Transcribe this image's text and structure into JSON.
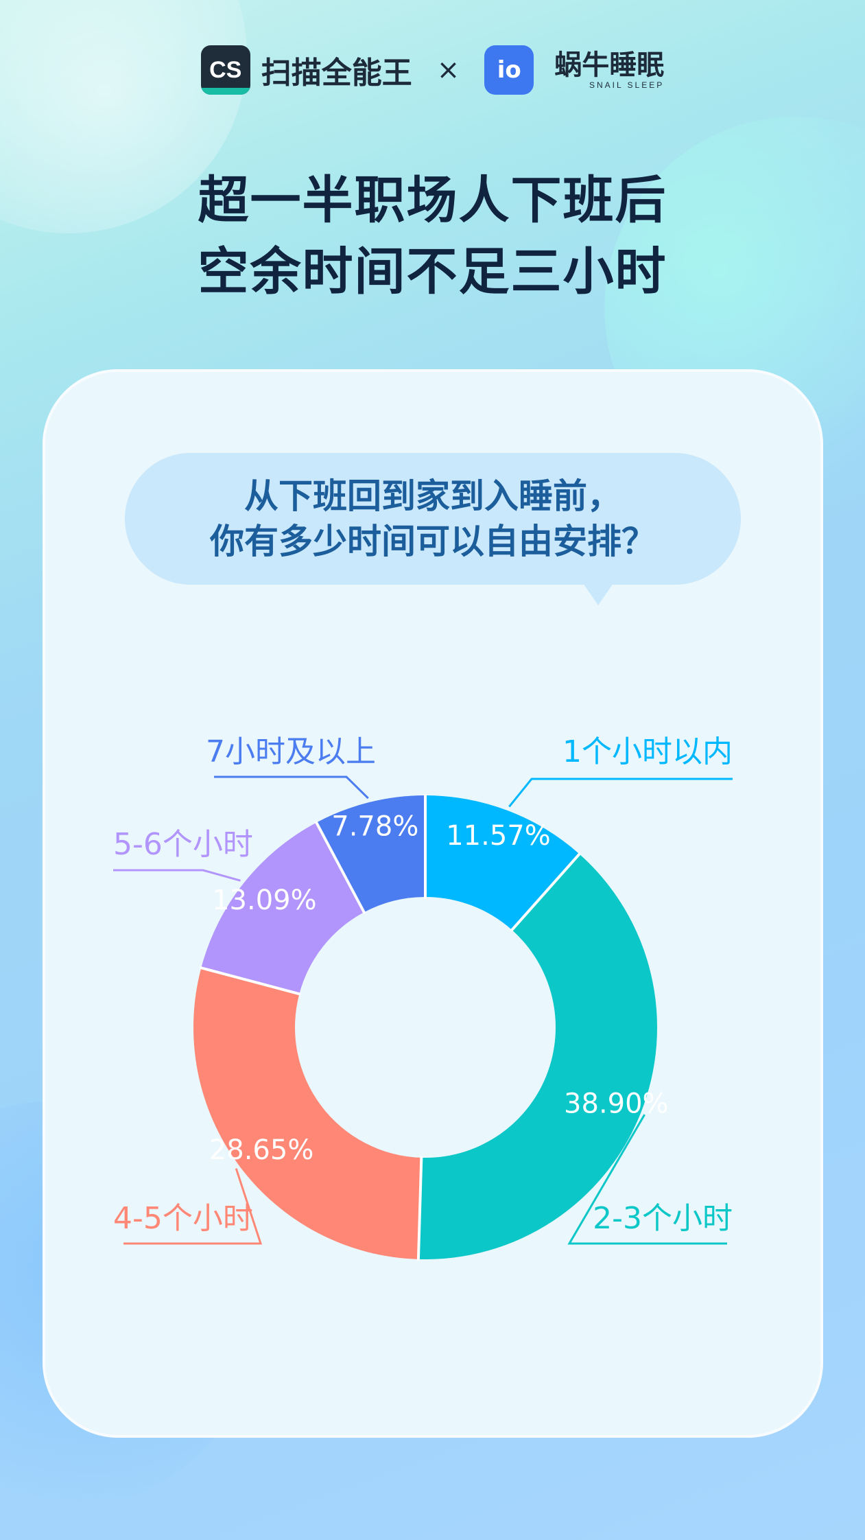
{
  "header": {
    "cs_logo_text": "CS",
    "cs_brand": "扫描全能王",
    "times": "×",
    "snail_logo_text": "io",
    "snail_brand_cn": "蜗牛睡眠",
    "snail_brand_en": "SNAIL SLEEP"
  },
  "title": {
    "line1": "超一半职场人下班后",
    "line2": "空余时间不足三小时"
  },
  "question": {
    "line1": "从下班回到家到入睡前，",
    "line2": "你有多少时间可以自由安排？"
  },
  "chart_data": {
    "type": "pie",
    "donut": true,
    "slices": [
      {
        "label": "1个小时以内",
        "value": 11.57,
        "value_label": "11.57%",
        "color": "#00b8ff"
      },
      {
        "label": "2-3个小时",
        "value": 38.9,
        "value_label": "38.90%",
        "color": "#0cc7c7"
      },
      {
        "label": "4-5个小时",
        "value": 28.65,
        "value_label": "28.65%",
        "color": "#ff8775"
      },
      {
        "label": "5-6个小时",
        "value": 13.09,
        "value_label": "13.09%",
        "color": "#b195fc"
      },
      {
        "label": "7小时及以上",
        "value": 7.78,
        "value_label": "7.78%",
        "color": "#4b7cf0"
      }
    ]
  },
  "colors": {
    "title": "#10233f",
    "question_text": "#1c5e9c",
    "card_bg": "#eaf7fd"
  }
}
